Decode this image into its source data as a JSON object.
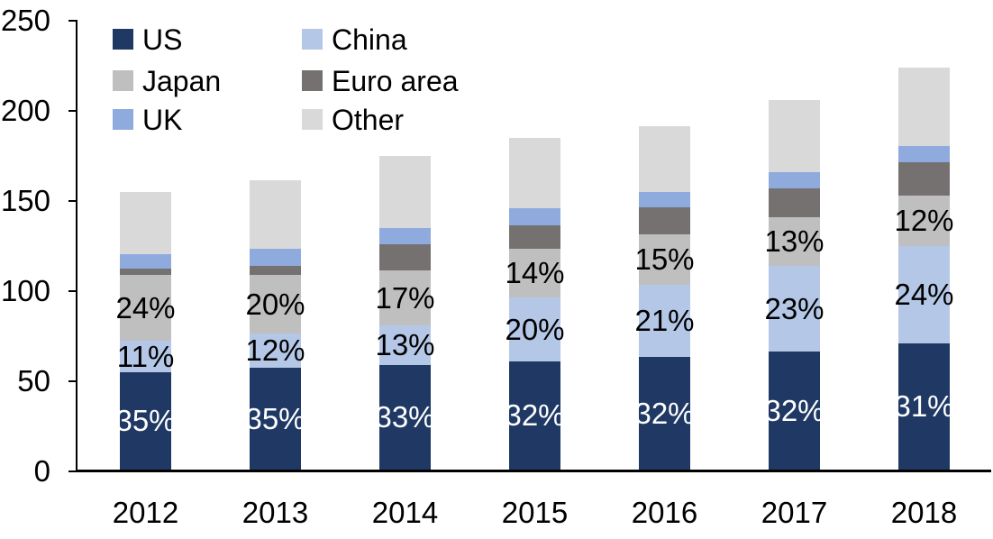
{
  "chart_data": {
    "type": "bar",
    "subtype": "stacked",
    "title": "",
    "categories": [
      "2012",
      "2013",
      "2014",
      "2015",
      "2016",
      "2017",
      "2018"
    ],
    "series": [
      {
        "name": "US",
        "color": "#1F3864",
        "values": [
          54,
          56.5,
          58,
          60,
          62.5,
          65.5,
          70
        ],
        "labels": [
          "35%",
          "35%",
          "33%",
          "32%",
          "32%",
          "32%",
          "31%"
        ],
        "label_color": "#FFFFFF"
      },
      {
        "name": "China",
        "color": "#B4C7E7",
        "values": [
          17.5,
          19,
          22,
          35.5,
          40,
          47.5,
          54
        ],
        "labels": [
          "11%",
          "12%",
          "13%",
          "20%",
          "21%",
          "23%",
          "24%"
        ],
        "label_color": "#000000"
      },
      {
        "name": "Japan",
        "color": "#BFBFBF",
        "values": [
          36.5,
          32.5,
          30.5,
          27,
          28,
          27,
          28
        ],
        "labels": [
          "24%",
          "20%",
          "17%",
          "14%",
          "15%",
          "13%",
          "12%"
        ],
        "label_color": "#000000"
      },
      {
        "name": "Euro area",
        "color": "#767171",
        "values": [
          3.5,
          5,
          14.5,
          13,
          15,
          16,
          18.5
        ],
        "labels": null,
        "label_color": null
      },
      {
        "name": "UK",
        "color": "#8FAADC",
        "values": [
          8,
          9.5,
          9,
          9.5,
          8.5,
          9,
          9
        ],
        "labels": null,
        "label_color": null
      },
      {
        "name": "Other",
        "color": "#D9D9D9",
        "values": [
          34.5,
          38,
          40,
          39,
          36.5,
          40,
          43.5
        ],
        "labels": null,
        "label_color": null
      }
    ],
    "stack_totals": [
      154,
      160.5,
      174,
      184,
      190.5,
      205,
      223
    ],
    "y_axis": {
      "min": 0,
      "max": 250,
      "tick_step": 50,
      "tick_labels": [
        "0",
        "50",
        "100",
        "150",
        "200",
        "250"
      ]
    },
    "xlabel": "",
    "ylabel": "",
    "grid": false,
    "legend_position": "top-left"
  },
  "legend": {
    "columns": 2,
    "row_order_series_indexes": [
      0,
      1,
      2,
      3,
      4,
      5
    ]
  }
}
